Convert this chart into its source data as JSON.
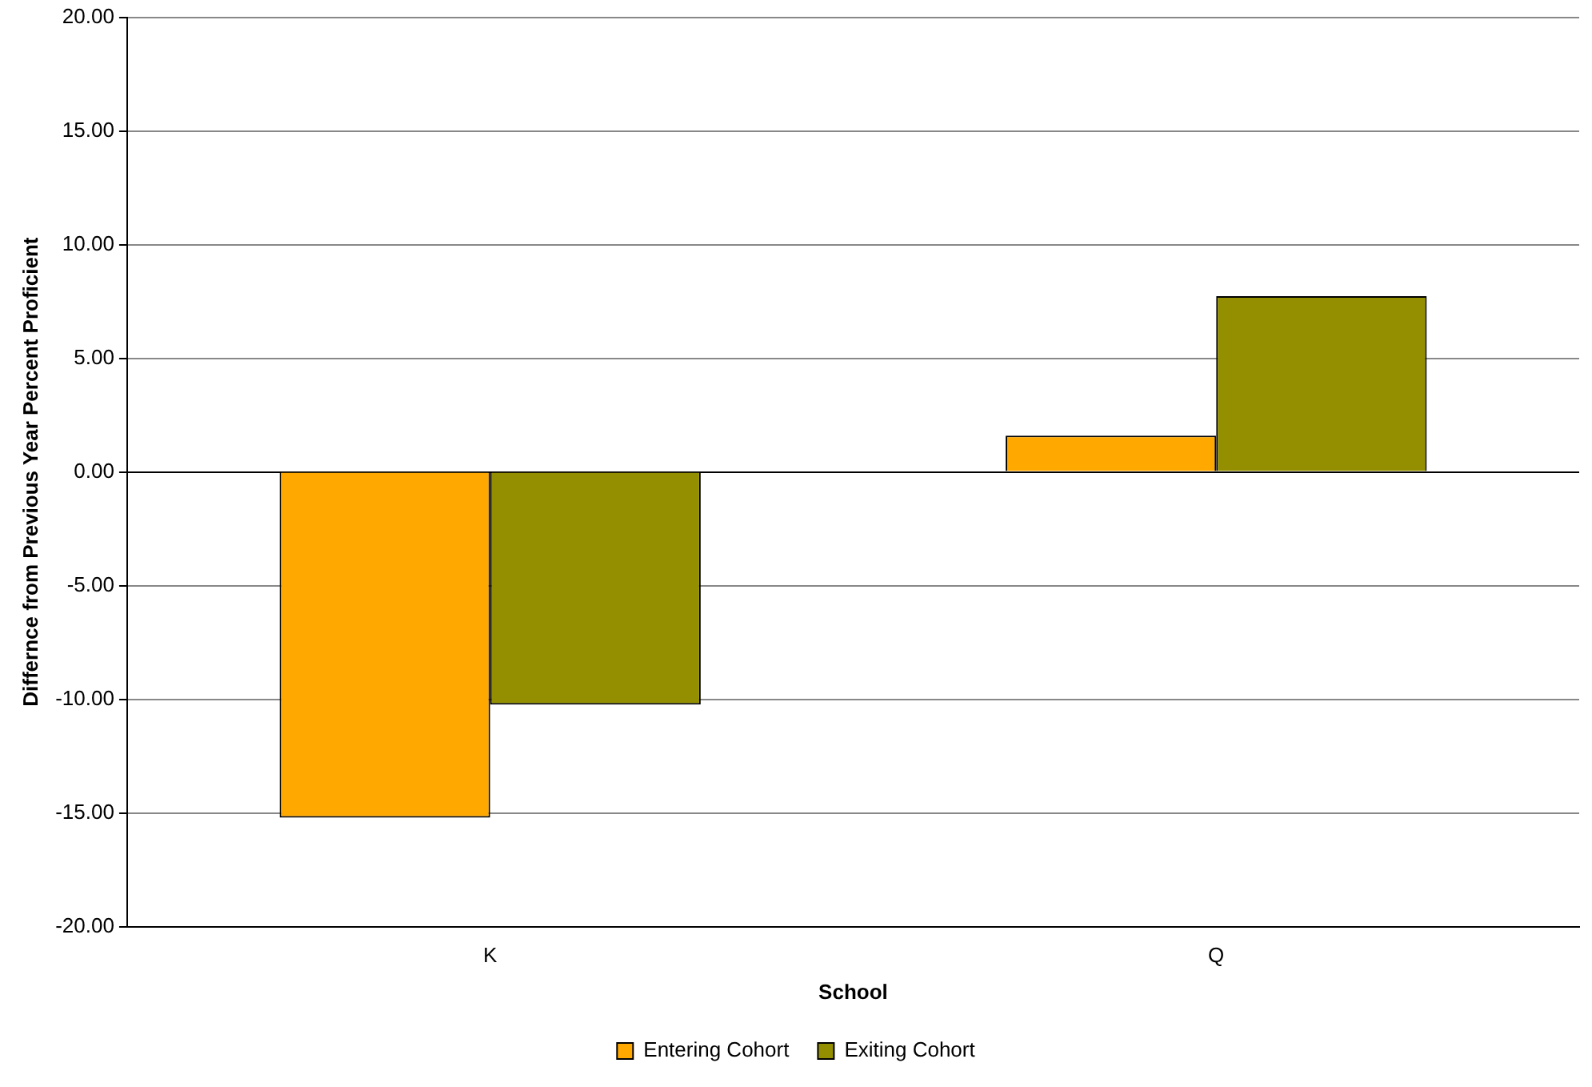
{
  "chart_data": {
    "type": "bar",
    "xlabel": "School",
    "ylabel": "Differnce from Previous Year Percent Proficient",
    "categories": [
      "K",
      "Q"
    ],
    "series": [
      {
        "name": "Entering Cohort",
        "color": "#ffa800",
        "values": [
          -15.21,
          1.6
        ]
      },
      {
        "name": "Exiting Cohort",
        "color": "#948f00",
        "values": [
          -10.23,
          7.73
        ]
      }
    ],
    "ylim": [
      -20,
      20
    ],
    "yticks": [
      {
        "value": -20,
        "label": "-20.00"
      },
      {
        "value": -15,
        "label": "-15.00"
      },
      {
        "value": -10,
        "label": "-10.00"
      },
      {
        "value": -5,
        "label": "-5.00"
      },
      {
        "value": 0,
        "label": "0.00"
      },
      {
        "value": 5,
        "label": "5.00"
      },
      {
        "value": 10,
        "label": "10.00"
      },
      {
        "value": 15,
        "label": "15.00"
      },
      {
        "value": 20,
        "label": "20.00"
      }
    ],
    "grid": "y",
    "legend": "bottom"
  }
}
